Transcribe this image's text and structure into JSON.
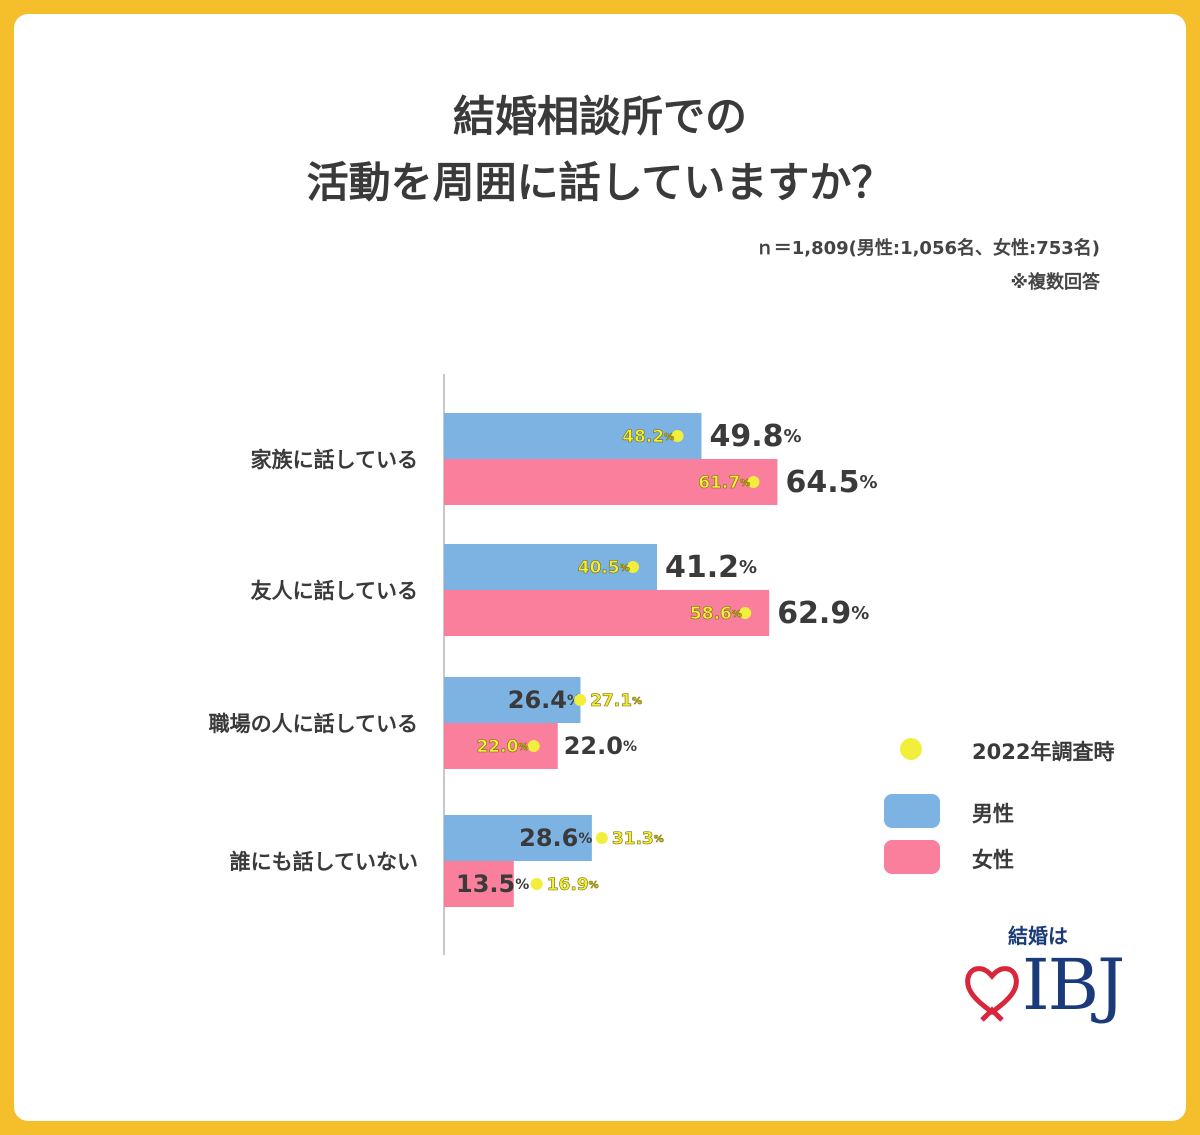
{
  "title_line1": "結婚相談所での",
  "title_line2": "活動を周囲に話していますか？",
  "sample_note": "ｎ＝1,809(男性:1,056名、女性:753名)",
  "multi_note": "※複数回答",
  "legend": {
    "prev": "2022年調査時",
    "male": "男性",
    "female": "女性"
  },
  "colors": {
    "male": "#7db3e3",
    "female": "#f97f9c",
    "dot": "#f1ef3c",
    "frame": "#f4bf2a",
    "logo": "#1a3a7a",
    "heart": "#d8263b"
  },
  "logo": {
    "top": "結婚は",
    "text": "IBJ"
  },
  "chart_data": {
    "type": "bar",
    "orientation": "horizontal",
    "unit": "%",
    "categories": [
      "家族に話している",
      "友人に話している",
      "職場の人に話している",
      "誰にも話していない"
    ],
    "series": [
      {
        "name": "男性",
        "values": [
          49.8,
          41.2,
          26.4,
          28.6
        ],
        "prev_2022": [
          48.2,
          40.5,
          27.1,
          31.3
        ]
      },
      {
        "name": "女性",
        "values": [
          64.5,
          62.9,
          22.0,
          13.5
        ],
        "prev_2022": [
          61.7,
          58.6,
          22.0,
          16.9
        ]
      }
    ],
    "xlim": [
      0,
      100
    ]
  }
}
